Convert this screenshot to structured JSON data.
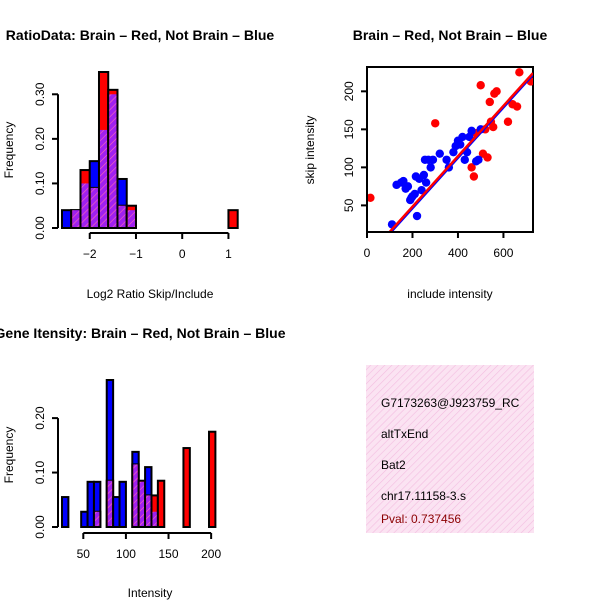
{
  "colors": {
    "red": "#ff0000",
    "blue": "#0000ff",
    "purple": "#a020f0",
    "hatch": "#ff69b4",
    "pval": "#8b0000",
    "fit_line": "#6600cc"
  },
  "chart_data": [
    {
      "id": "ratio",
      "type": "bar",
      "title": "RatioData: Brain – Red, Not Brain – Blue",
      "xlabel": "Log2 Ratio Skip/Include",
      "ylabel": "Frequency",
      "xlim": [
        -2.6,
        1.25
      ],
      "ylim": [
        0,
        0.35
      ],
      "xticks": [
        -2,
        -1,
        0,
        1
      ],
      "yticks": [
        0.0,
        0.1,
        0.2,
        0.3
      ],
      "xtick_labels": [
        "−2",
        "−1",
        "0",
        "1"
      ],
      "ytick_labels": [
        "0.00",
        "0.10",
        "0.20",
        "0.30"
      ],
      "bin_width": 0.2,
      "bins_start": [
        -2.6,
        -2.4,
        -2.2,
        -2.0,
        -1.8,
        -1.6,
        -1.4,
        -1.2,
        -1.0,
        -0.8,
        -0.6,
        -0.4,
        -0.2,
        0.0,
        0.2,
        0.4,
        0.6,
        0.8,
        1.0
      ],
      "series": [
        {
          "name": "Not Brain",
          "color": "blue",
          "values": [
            0.04,
            0.04,
            0.1,
            0.15,
            0.22,
            0.3,
            0.11,
            0.04,
            0.0,
            0.0,
            0.0,
            0.0,
            0.0,
            0.0,
            0.0,
            0.0,
            0.0,
            0.0,
            0.0
          ]
        },
        {
          "name": "Brain",
          "color": "red",
          "values": [
            0.0,
            0.04,
            0.13,
            0.09,
            0.35,
            0.31,
            0.05,
            0.05,
            0.0,
            0.0,
            0.0,
            0.0,
            0.0,
            0.0,
            0.0,
            0.0,
            0.0,
            0.0,
            0.04
          ]
        }
      ]
    },
    {
      "id": "scatter",
      "type": "scatter",
      "title": "Brain – Red, Not Brain – Blue",
      "xlabel": "include intensity",
      "ylabel": "skip intensity",
      "xlim": [
        0,
        730
      ],
      "ylim": [
        15,
        232
      ],
      "xticks": [
        0,
        200,
        400,
        600
      ],
      "yticks": [
        50,
        100,
        150,
        200
      ],
      "xtick_labels": [
        "0",
        "200",
        "400",
        "600"
      ],
      "ytick_labels": [
        "50",
        "100",
        "150",
        "200"
      ],
      "series": [
        {
          "name": "Brain",
          "color": "red",
          "points": [
            [
              15,
              60
            ],
            [
              300,
              158
            ],
            [
              460,
              100
            ],
            [
              470,
              88
            ],
            [
              480,
              145
            ],
            [
              500,
              208
            ],
            [
              510,
              118
            ],
            [
              520,
              150
            ],
            [
              530,
              113
            ],
            [
              540,
              186
            ],
            [
              545,
              160
            ],
            [
              555,
              153
            ],
            [
              560,
              197
            ],
            [
              570,
              200
            ],
            [
              620,
              160
            ],
            [
              640,
              183
            ],
            [
              660,
              180
            ],
            [
              670,
              225
            ],
            [
              720,
              213
            ]
          ]
        },
        {
          "name": "Not Brain",
          "color": "blue",
          "points": [
            [
              110,
              25
            ],
            [
              130,
              77
            ],
            [
              150,
              80
            ],
            [
              160,
              82
            ],
            [
              170,
              72
            ],
            [
              180,
              75
            ],
            [
              190,
              57
            ],
            [
              195,
              60
            ],
            [
              200,
              62
            ],
            [
              210,
              65
            ],
            [
              215,
              88
            ],
            [
              220,
              36
            ],
            [
              230,
              85
            ],
            [
              240,
              70
            ],
            [
              250,
              90
            ],
            [
              255,
              110
            ],
            [
              260,
              80
            ],
            [
              270,
              110
            ],
            [
              280,
              100
            ],
            [
              290,
              110
            ],
            [
              320,
              118
            ],
            [
              350,
              110
            ],
            [
              360,
              100
            ],
            [
              380,
              120
            ],
            [
              390,
              128
            ],
            [
              400,
              135
            ],
            [
              410,
              130
            ],
            [
              420,
              140
            ],
            [
              430,
              110
            ],
            [
              440,
              120
            ],
            [
              450,
              140
            ],
            [
              460,
              148
            ],
            [
              480,
              108
            ],
            [
              490,
              110
            ],
            [
              500,
              150
            ]
          ]
        }
      ],
      "fit_lines": [
        {
          "color": "blue",
          "x": [
            0,
            730
          ],
          "y": [
            -20,
            222
          ]
        },
        {
          "color": "red",
          "x": [
            0,
            730
          ],
          "y": [
            -18,
            224
          ]
        }
      ]
    },
    {
      "id": "intensity",
      "type": "bar",
      "title": "Gene Itensity: Brain – Red, Not Brain – Blue",
      "xlabel": "Intensity",
      "ylabel": "Frequency",
      "xlim": [
        25,
        228
      ],
      "ylim": [
        0,
        0.27
      ],
      "xticks": [
        50,
        100,
        150,
        200
      ],
      "yticks": [
        0.0,
        0.1,
        0.2
      ],
      "xtick_labels": [
        "50",
        "100",
        "150",
        "200"
      ],
      "ytick_labels": [
        "0.00",
        "0.10",
        "0.20"
      ],
      "bin_width": 7.5,
      "bins_start": [
        25,
        32.5,
        40,
        47.5,
        55,
        62.5,
        70,
        77.5,
        85,
        92.5,
        100,
        107.5,
        115,
        122.5,
        130,
        137.5,
        145,
        152.5,
        160,
        167.5,
        175,
        182.5,
        190,
        197.5,
        205,
        212.5,
        220
      ],
      "series": [
        {
          "name": "Not Brain",
          "color": "blue",
          "values": [
            0.055,
            0.0,
            0.0,
            0.028,
            0.083,
            0.083,
            0.0,
            0.27,
            0.055,
            0.083,
            0.0,
            0.138,
            0.083,
            0.11,
            0.028,
            0.0,
            0.0,
            0.0,
            0.0,
            0.0,
            0.0,
            0.0,
            0.0,
            0.0,
            0.0,
            0.0,
            0.0
          ]
        },
        {
          "name": "Brain",
          "color": "red",
          "values": [
            0.0,
            0.0,
            0.0,
            0.0,
            0.0,
            0.028,
            0.0,
            0.085,
            0.0,
            0.0,
            0.0,
            0.115,
            0.085,
            0.058,
            0.058,
            0.085,
            0.0,
            0.0,
            0.0,
            0.145,
            0.0,
            0.0,
            0.0,
            0.175,
            0.0,
            0.0,
            0.0
          ]
        }
      ]
    }
  ],
  "info_panel": {
    "lines": [
      "G7173263@J923759_RC",
      "altTxEnd",
      "Bat2",
      "chr17.11158-3.s"
    ],
    "pval": "Pval: 0.737456"
  }
}
